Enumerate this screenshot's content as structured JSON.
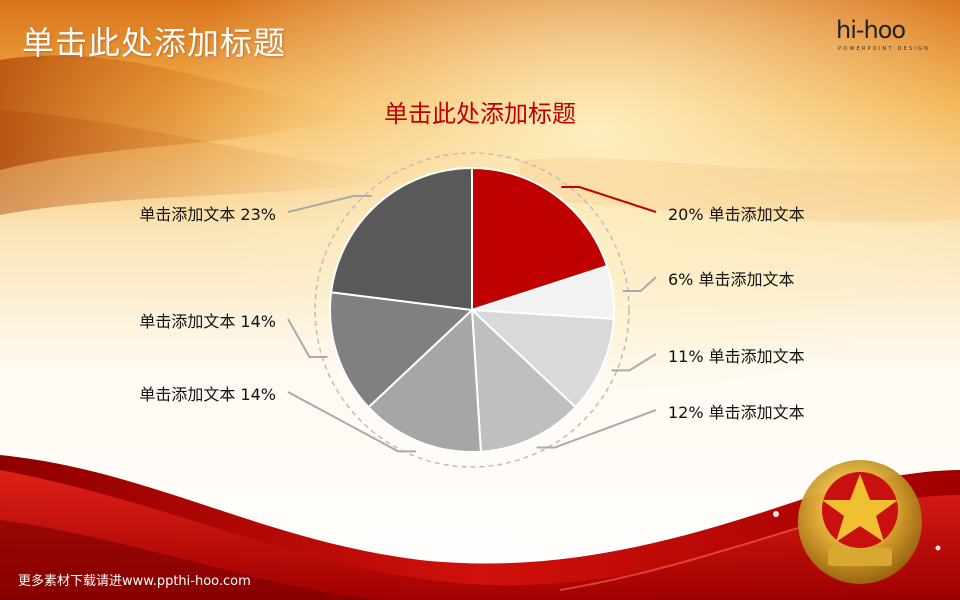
{
  "slide": {
    "title": "单击此处添加标题",
    "footer": "更多素材下载请进www.ppthi-hoo.com"
  },
  "logo": {
    "brand": "hi-hoo",
    "tagline": "POWERPOINT DESIGN"
  },
  "colors": {
    "accent": "#c00000",
    "leader_gray": "#aaaaaa"
  },
  "chart_data": {
    "type": "pie",
    "title": "单击此处添加标题",
    "series": [
      {
        "label": "20% 单击添加文本",
        "value": 20,
        "color": "#c00000",
        "side": "right"
      },
      {
        "label": "6% 单击添加文本",
        "value": 6,
        "color": "#f2f2f2",
        "side": "right"
      },
      {
        "label": "11% 单击添加文本",
        "value": 11,
        "color": "#d9d9d9",
        "side": "right"
      },
      {
        "label": "12% 单击添加文本",
        "value": 12,
        "color": "#bfbfbf",
        "side": "right"
      },
      {
        "label": "单击添加文本 14%",
        "value": 14,
        "color": "#a6a6a6",
        "side": "left"
      },
      {
        "label": "单击添加文本 14%",
        "value": 14,
        "color": "#808080",
        "side": "left"
      },
      {
        "label": "单击添加文本 23%",
        "value": 23,
        "color": "#595959",
        "side": "left"
      }
    ]
  }
}
